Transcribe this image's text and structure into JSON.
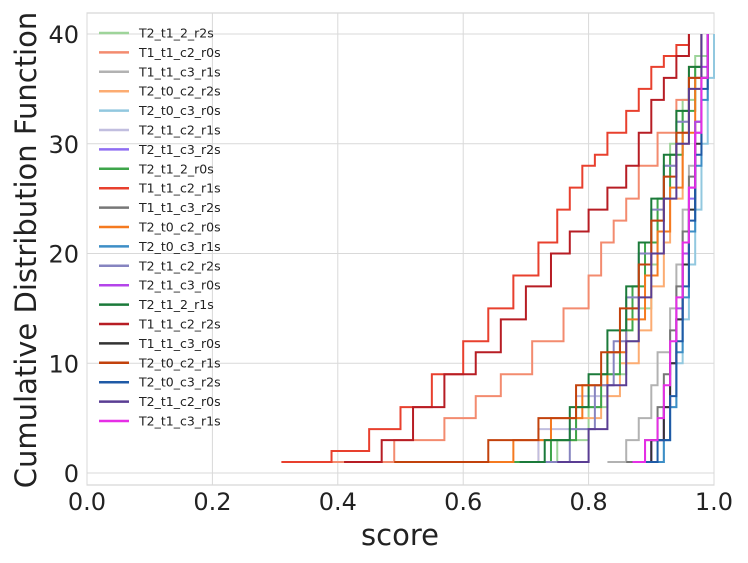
{
  "chart_data": {
    "type": "line",
    "step": true,
    "xlabel": "score",
    "ylabel": "Cumulative Distribution Function",
    "xlim": [
      0.0,
      1.0
    ],
    "ylim": [
      0,
      40
    ],
    "x_ticks": [
      "0.0",
      "0.2",
      "0.4",
      "0.6",
      "0.8",
      "1.0"
    ],
    "y_ticks": [
      "0",
      "10",
      "20",
      "30",
      "40"
    ],
    "grid": true,
    "legend": "top-left",
    "series": [
      {
        "name": "T2_t1_2_r2s",
        "color": "#9ed49a",
        "lw": 2,
        "x": [
          0.68,
          0.75,
          0.8,
          0.83,
          0.86,
          0.88,
          0.9,
          0.91,
          0.92,
          0.93,
          0.95,
          0.97,
          0.99
        ],
        "y": [
          1,
          3,
          6,
          9,
          12,
          15,
          19,
          23,
          27,
          30,
          34,
          38,
          40
        ]
      },
      {
        "name": "T1_t1_c2_r0s",
        "color": "#f38b6f",
        "lw": 2,
        "x": [
          0.39,
          0.49,
          0.57,
          0.62,
          0.66,
          0.71,
          0.76,
          0.8,
          0.82,
          0.84,
          0.86,
          0.88,
          0.91,
          0.94,
          0.96,
          0.98
        ],
        "y": [
          1,
          3,
          5,
          7,
          9,
          12,
          15,
          18,
          21,
          23,
          25,
          28,
          31,
          34,
          37,
          40
        ]
      },
      {
        "name": "T1_t1_c3_r1s",
        "color": "#b2b2b2",
        "lw": 2,
        "x": [
          0.83,
          0.86,
          0.88,
          0.9,
          0.91,
          0.93,
          0.94,
          0.95,
          0.96,
          0.97,
          0.98,
          0.99
        ],
        "y": [
          1,
          3,
          5,
          8,
          11,
          15,
          19,
          24,
          28,
          32,
          36,
          40
        ]
      },
      {
        "name": "T2_t0_c2_r2s",
        "color": "#fcac72",
        "lw": 2,
        "x": [
          0.62,
          0.72,
          0.78,
          0.82,
          0.85,
          0.88,
          0.9,
          0.92,
          0.93,
          0.95,
          0.96,
          0.98
        ],
        "y": [
          1,
          3,
          5,
          7,
          10,
          13,
          17,
          21,
          25,
          30,
          35,
          40
        ]
      },
      {
        "name": "T2_t0_c3_r0s",
        "color": "#92c8df",
        "lw": 2,
        "x": [
          0.9,
          0.92,
          0.93,
          0.94,
          0.95,
          0.96,
          0.97,
          0.98,
          0.99,
          1.0
        ],
        "y": [
          1,
          3,
          6,
          10,
          14,
          19,
          24,
          30,
          36,
          40
        ]
      },
      {
        "name": "T2_t1_c2_r1s",
        "color": "#c1bedf",
        "lw": 2,
        "x": [
          0.6,
          0.72,
          0.78,
          0.83,
          0.86,
          0.88,
          0.9,
          0.92,
          0.94,
          0.96,
          0.98
        ],
        "y": [
          1,
          4,
          7,
          11,
          15,
          19,
          23,
          28,
          32,
          36,
          40
        ]
      },
      {
        "name": "T2_t1_c3_r2s",
        "color": "#8f6ef2",
        "lw": 2,
        "x": [
          0.87,
          0.9,
          0.92,
          0.93,
          0.94,
          0.95,
          0.96,
          0.97,
          0.98,
          0.99
        ],
        "y": [
          1,
          3,
          6,
          10,
          14,
          19,
          25,
          31,
          36,
          40
        ]
      },
      {
        "name": "T2_t1_2_r0s",
        "color": "#3ea54a",
        "lw": 2,
        "x": [
          0.68,
          0.74,
          0.78,
          0.82,
          0.85,
          0.87,
          0.89,
          0.91,
          0.93,
          0.95,
          0.97,
          0.98
        ],
        "y": [
          1,
          3,
          6,
          9,
          13,
          17,
          21,
          25,
          29,
          33,
          37,
          40
        ]
      },
      {
        "name": "T1_t1_c2_r1s",
        "color": "#e8402e",
        "lw": 2,
        "x": [
          0.31,
          0.39,
          0.45,
          0.5,
          0.55,
          0.6,
          0.64,
          0.68,
          0.72,
          0.75,
          0.77,
          0.79,
          0.81,
          0.83,
          0.86,
          0.88,
          0.9,
          0.92,
          0.94,
          0.96
        ],
        "y": [
          1,
          2,
          4,
          6,
          9,
          12,
          15,
          18,
          21,
          24,
          26,
          28,
          29,
          31,
          33,
          35,
          37,
          38,
          39,
          40
        ]
      },
      {
        "name": "T1_t1_c3_r2s",
        "color": "#777777",
        "lw": 2,
        "x": [
          0.86,
          0.89,
          0.91,
          0.92,
          0.93,
          0.94,
          0.95,
          0.96,
          0.97,
          0.98,
          0.99
        ],
        "y": [
          1,
          3,
          6,
          9,
          13,
          17,
          22,
          27,
          32,
          36,
          40
        ]
      },
      {
        "name": "T2_t0_c2_r0s",
        "color": "#f57a20",
        "lw": 2,
        "x": [
          0.5,
          0.68,
          0.74,
          0.79,
          0.83,
          0.86,
          0.89,
          0.91,
          0.93,
          0.95,
          0.97,
          0.98
        ],
        "y": [
          1,
          3,
          5,
          8,
          11,
          14,
          18,
          22,
          26,
          31,
          36,
          40
        ]
      },
      {
        "name": "T2_t0_c3_r1s",
        "color": "#3d8ec6",
        "lw": 2,
        "x": [
          0.9,
          0.92,
          0.93,
          0.94,
          0.95,
          0.96,
          0.97,
          0.98,
          0.99
        ],
        "y": [
          1,
          3,
          6,
          11,
          16,
          22,
          28,
          34,
          40
        ]
      },
      {
        "name": "T2_t1_c2_r2s",
        "color": "#8684c0",
        "lw": 2,
        "x": [
          0.71,
          0.77,
          0.81,
          0.84,
          0.86,
          0.88,
          0.9,
          0.92,
          0.94,
          0.96,
          0.98
        ],
        "y": [
          1,
          4,
          8,
          12,
          16,
          20,
          24,
          28,
          32,
          36,
          40
        ]
      },
      {
        "name": "T2_t1_c3_r0s",
        "color": "#b444ea",
        "lw": 2,
        "x": [
          0.87,
          0.9,
          0.92,
          0.93,
          0.94,
          0.95,
          0.96,
          0.97,
          0.98,
          0.99
        ],
        "y": [
          1,
          3,
          6,
          10,
          15,
          20,
          26,
          32,
          37,
          40
        ]
      },
      {
        "name": "T2_t1_2_r1s",
        "color": "#1b7a3a",
        "lw": 2,
        "x": [
          0.69,
          0.73,
          0.77,
          0.8,
          0.83,
          0.86,
          0.88,
          0.9,
          0.92,
          0.94,
          0.96,
          0.98
        ],
        "y": [
          1,
          3,
          6,
          9,
          13,
          17,
          21,
          25,
          29,
          33,
          37,
          40
        ]
      },
      {
        "name": "T1_t1_c2_r2s",
        "color": "#b71d24",
        "lw": 2,
        "x": [
          0.41,
          0.47,
          0.52,
          0.57,
          0.62,
          0.66,
          0.7,
          0.74,
          0.77,
          0.8,
          0.83,
          0.86,
          0.88,
          0.9,
          0.92,
          0.94,
          0.96
        ],
        "y": [
          1,
          3,
          6,
          9,
          11,
          14,
          17,
          20,
          22,
          24,
          26,
          28,
          31,
          34,
          36,
          38,
          40
        ]
      },
      {
        "name": "T1_t1_c3_r0s",
        "color": "#333333",
        "lw": 2,
        "x": [
          0.88,
          0.9,
          0.92,
          0.93,
          0.94,
          0.95,
          0.96,
          0.97,
          0.98,
          0.99
        ],
        "y": [
          1,
          3,
          6,
          10,
          14,
          19,
          24,
          30,
          36,
          40
        ]
      },
      {
        "name": "T2_t0_c2_r1s",
        "color": "#c2420c",
        "lw": 2,
        "x": [
          0.49,
          0.64,
          0.72,
          0.78,
          0.82,
          0.85,
          0.88,
          0.9,
          0.92,
          0.94,
          0.96,
          0.98
        ],
        "y": [
          1,
          3,
          5,
          8,
          11,
          15,
          19,
          23,
          27,
          31,
          36,
          40
        ]
      },
      {
        "name": "T2_t0_c3_r2s",
        "color": "#1f5aa6",
        "lw": 2,
        "x": [
          0.88,
          0.91,
          0.93,
          0.94,
          0.95,
          0.96,
          0.97,
          0.98,
          0.99
        ],
        "y": [
          1,
          3,
          7,
          12,
          17,
          23,
          29,
          35,
          40
        ]
      },
      {
        "name": "T2_t1_c2_r0s",
        "color": "#5a3d93",
        "lw": 2,
        "x": [
          0.75,
          0.8,
          0.83,
          0.86,
          0.88,
          0.9,
          0.92,
          0.94,
          0.96,
          0.98
        ],
        "y": [
          1,
          4,
          8,
          12,
          16,
          20,
          25,
          30,
          35,
          40
        ]
      },
      {
        "name": "T2_t1_c3_r1s",
        "color": "#e62ee6",
        "lw": 2,
        "x": [
          0.87,
          0.89,
          0.91,
          0.92,
          0.93,
          0.94,
          0.95,
          0.96,
          0.97,
          0.98,
          0.99
        ],
        "y": [
          1,
          3,
          5,
          8,
          12,
          16,
          21,
          26,
          31,
          36,
          40
        ]
      }
    ]
  }
}
